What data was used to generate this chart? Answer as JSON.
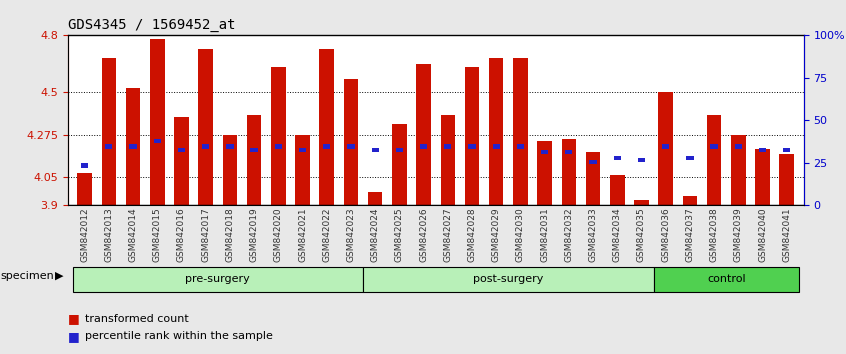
{
  "title": "GDS4345 / 1569452_at",
  "categories": [
    "GSM842012",
    "GSM842013",
    "GSM842014",
    "GSM842015",
    "GSM842016",
    "GSM842017",
    "GSM842018",
    "GSM842019",
    "GSM842020",
    "GSM842021",
    "GSM842022",
    "GSM842023",
    "GSM842024",
    "GSM842025",
    "GSM842026",
    "GSM842027",
    "GSM842028",
    "GSM842029",
    "GSM842030",
    "GSM842031",
    "GSM842032",
    "GSM842033",
    "GSM842034",
    "GSM842035",
    "GSM842036",
    "GSM842037",
    "GSM842038",
    "GSM842039",
    "GSM842040",
    "GSM842041"
  ],
  "red_values": [
    4.07,
    4.68,
    4.52,
    4.78,
    4.37,
    4.73,
    4.27,
    4.38,
    4.63,
    4.27,
    4.73,
    4.57,
    3.97,
    4.33,
    4.65,
    4.38,
    4.63,
    4.68,
    4.68,
    4.24,
    4.25,
    4.18,
    4.06,
    3.93,
    4.5,
    3.95,
    4.38,
    4.27,
    4.2,
    4.17
  ],
  "blue_values": [
    4.1,
    4.2,
    4.2,
    4.23,
    4.18,
    4.2,
    4.2,
    4.18,
    4.2,
    4.18,
    4.2,
    4.2,
    4.18,
    4.18,
    4.2,
    4.2,
    4.2,
    4.2,
    4.2,
    4.17,
    4.17,
    4.12,
    4.14,
    4.13,
    4.2,
    4.14,
    4.2,
    4.2,
    4.18,
    4.18
  ],
  "groups": [
    {
      "label": "pre-surgery",
      "start": 0,
      "end": 11,
      "color": "#90EE90"
    },
    {
      "label": "post-surgery",
      "start": 12,
      "end": 23,
      "color": "#90EE90"
    },
    {
      "label": "control",
      "start": 24,
      "end": 29,
      "color": "#32CD32"
    }
  ],
  "ymin": 3.9,
  "ymax": 4.8,
  "yticks": [
    3.9,
    4.05,
    4.275,
    4.5,
    4.8
  ],
  "ytick_labels": [
    "3.9",
    "4.05",
    "4.275",
    "4.5",
    "4.8"
  ],
  "right_yticks": [
    0,
    25,
    50,
    75,
    100
  ],
  "right_ytick_labels": [
    "0",
    "25",
    "50",
    "75",
    "100%"
  ],
  "bar_color": "#CC1100",
  "blue_color": "#2222CC",
  "bg_color": "#f0f0f0",
  "plot_bg": "#ffffff",
  "grid_color": "#000000",
  "xlabel_color": "#CC1100",
  "right_axis_color": "#0000CC",
  "legend_red": "transformed count",
  "legend_blue": "percentile rank within the sample",
  "specimen_label": "specimen"
}
